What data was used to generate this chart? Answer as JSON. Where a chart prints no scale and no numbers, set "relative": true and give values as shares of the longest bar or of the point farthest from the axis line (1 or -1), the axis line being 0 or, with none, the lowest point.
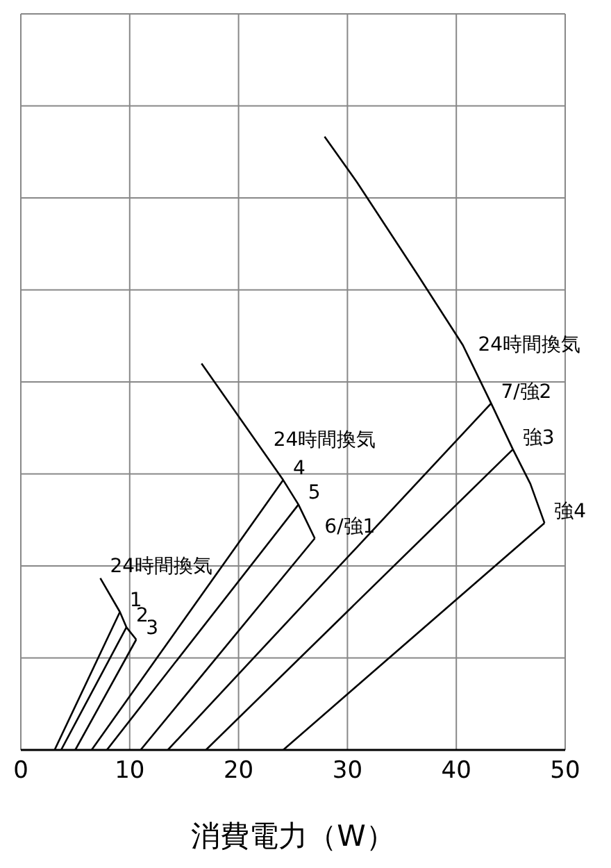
{
  "chart_data": {
    "type": "line",
    "relative": true,
    "xlabel": "消費電力（W）",
    "xlim": [
      0,
      50
    ],
    "xticks": [
      0,
      10,
      20,
      30,
      40,
      50
    ],
    "grid": true,
    "tick_labels": "x",
    "marker": "none",
    "line_style": "solid",
    "series": [
      {
        "color": "#000000",
        "x": [
          3.1,
          9.1
        ],
        "values": [
          0,
          0.225
        ]
      },
      {
        "color": "#000000",
        "x": [
          3.7,
          9.7
        ],
        "values": [
          0,
          0.2
        ]
      },
      {
        "color": "#000000",
        "x": [
          5.0,
          10.6
        ],
        "values": [
          0,
          0.18
        ]
      },
      {
        "color": "#000000",
        "x": [
          7.3,
          9.1,
          9.7,
          10.6
        ],
        "values": [
          0.28,
          0.225,
          0.2,
          0.18
        ]
      },
      {
        "color": "#000000",
        "x": [
          6.5,
          24.1
        ],
        "values": [
          0,
          0.44
        ]
      },
      {
        "color": "#000000",
        "x": [
          7.9,
          25.5
        ],
        "values": [
          0,
          0.4
        ]
      },
      {
        "color": "#000000",
        "x": [
          11.0,
          27.0
        ],
        "values": [
          0,
          0.345
        ]
      },
      {
        "color": "#000000",
        "x": [
          16.6,
          24.1,
          25.5,
          27.0
        ],
        "values": [
          0.63,
          0.44,
          0.4,
          0.345
        ]
      },
      {
        "color": "#000000",
        "x": [
          13.5,
          43.2
        ],
        "values": [
          0,
          0.565
        ]
      },
      {
        "color": "#000000",
        "x": [
          17.0,
          45.2
        ],
        "values": [
          0,
          0.49
        ]
      },
      {
        "color": "#000000",
        "x": [
          24.1,
          48.1
        ],
        "values": [
          0,
          0.37
        ]
      },
      {
        "color": "#000000",
        "x": [
          27.9,
          30.9,
          36.4,
          40.6,
          43.2,
          45.2,
          46.8,
          48.1
        ],
        "values": [
          1,
          0.925,
          0.776,
          0.66,
          0.565,
          0.49,
          0.434,
          0.37
        ]
      }
    ],
    "annotations": [
      {
        "text": "24時間換気",
        "x": 7.3,
        "y": 0.28
      },
      {
        "text": "1",
        "x": 9.1,
        "y": 0.225
      },
      {
        "text": "2",
        "x": 9.7,
        "y": 0.2
      },
      {
        "text": "3",
        "x": 10.6,
        "y": 0.18
      },
      {
        "text": "24時間換気",
        "x": 22.3,
        "y": 0.486
      },
      {
        "text": "4",
        "x": 24.1,
        "y": 0.44
      },
      {
        "text": "5",
        "x": 25.5,
        "y": 0.4
      },
      {
        "text": "6/強1",
        "x": 27.0,
        "y": 0.345
      },
      {
        "text": "24時間換気",
        "x": 41.1,
        "y": 0.642
      },
      {
        "text": "7/強2",
        "x": 43.2,
        "y": 0.565
      },
      {
        "text": "強3",
        "x": 45.2,
        "y": 0.49
      },
      {
        "text": "強4",
        "x": 48.1,
        "y": 0.37
      }
    ]
  }
}
